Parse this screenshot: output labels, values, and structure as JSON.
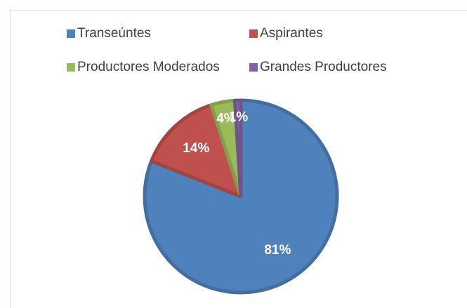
{
  "chart_data": {
    "type": "pie",
    "categories": [
      "Transeúntes",
      "Aspirantes",
      "Productores Moderados",
      "Grandes Productores"
    ],
    "values": [
      81,
      14,
      4,
      1
    ],
    "value_labels": [
      "81%",
      "14%",
      "4%",
      "1%"
    ],
    "colors": [
      "#4f81bd",
      "#c0504d",
      "#9bbb59",
      "#8064a2"
    ],
    "legend": "top"
  }
}
